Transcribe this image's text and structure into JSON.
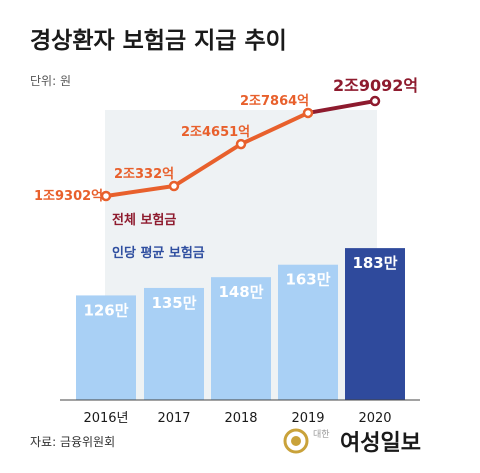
{
  "title": "경상환자 보험금 지급 추이",
  "unit": "단위: 원",
  "source": "자료: 금융위원회",
  "brand": {
    "small": "대한",
    "name": "여성일보"
  },
  "colors": {
    "line": "#e8602c",
    "line_last": "#8e1b2e",
    "bar": "#a9d0f5",
    "bar_highlight": "#2f4a9c",
    "panel": "#eef2f4"
  },
  "chart_data": [
    {
      "type": "line",
      "series_name": "전체 보험금",
      "categories": [
        "2016년",
        "2017",
        "2018",
        "2019",
        "2020"
      ],
      "values": [
        19302,
        20332,
        24651,
        27864,
        29092
      ],
      "value_unit": "억 원",
      "labels": [
        "1조9302억",
        "2조332억",
        "2조4651억",
        "2조7864억",
        "2조9092억"
      ]
    },
    {
      "type": "bar",
      "series_name": "인당 평균 보험금",
      "categories": [
        "2016년",
        "2017",
        "2018",
        "2019",
        "2020"
      ],
      "values": [
        126,
        135,
        148,
        163,
        183
      ],
      "value_unit": "만 원",
      "labels": [
        "126만",
        "135만",
        "148만",
        "163만",
        "183만"
      ]
    }
  ]
}
